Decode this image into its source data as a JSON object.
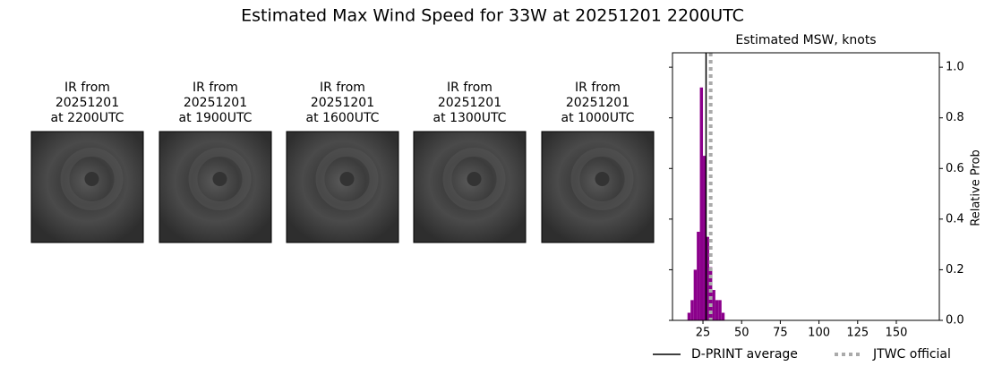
{
  "title": "Estimated Max Wind Speed for 33W at 20251201 2200UTC",
  "panels": [
    {
      "lines": [
        "IR from",
        "20251201",
        "at 2200UTC"
      ]
    },
    {
      "lines": [
        "IR from",
        "20251201",
        "at 1900UTC"
      ]
    },
    {
      "lines": [
        "IR from",
        "20251201",
        "at 1600UTC"
      ]
    },
    {
      "lines": [
        "IR from",
        "20251201",
        "at 1300UTC"
      ]
    },
    {
      "lines": [
        "IR from",
        "20251201",
        "at 1000UTC"
      ]
    }
  ],
  "chart_data": {
    "type": "histogram",
    "title": "Estimated MSW, knots",
    "y_label": "Relative Prob",
    "bins": [
      15,
      17,
      19,
      21,
      23,
      25,
      27,
      29,
      31,
      33,
      35,
      37,
      39
    ],
    "values": [
      0.03,
      0.08,
      0.2,
      0.35,
      0.92,
      0.65,
      0.33,
      0.21,
      0.12,
      0.08,
      0.08,
      0.03
    ],
    "color": "#8b008b",
    "xlim": [
      5.3,
      177.8
    ],
    "ylim": [
      0,
      1.057
    ],
    "xticks": [
      25,
      50,
      75,
      100,
      125,
      150
    ],
    "yticks": [
      {
        "value": 0,
        "label": "0.0"
      },
      0.2,
      0.4,
      0.6,
      0.8,
      {
        "value": 1,
        "label": "1.0"
      }
    ],
    "reference_lines": [
      {
        "name": "D-PRINT average",
        "value": 27,
        "color": "#000000",
        "style": "solid"
      },
      {
        "name": "JTWC official",
        "value": 30,
        "color": "#aaaaaa",
        "style": "dotted"
      }
    ],
    "legend": "bottom"
  }
}
